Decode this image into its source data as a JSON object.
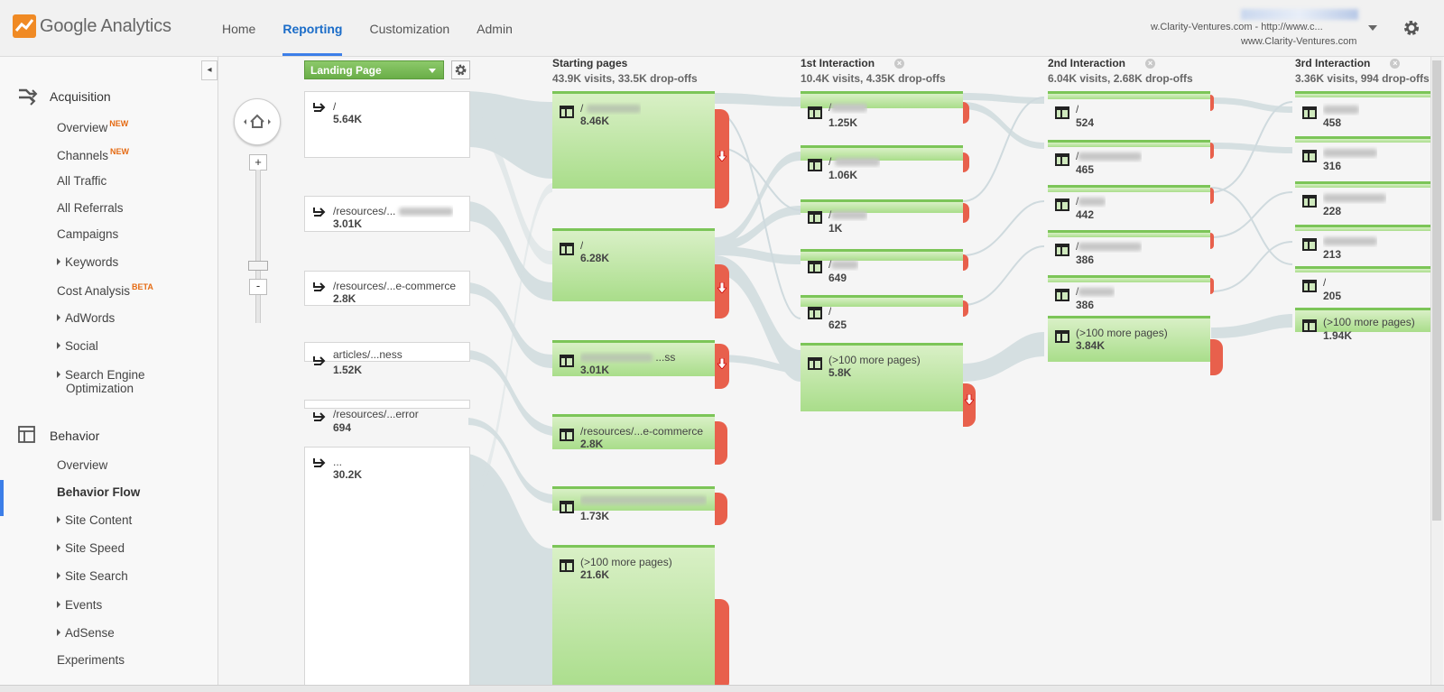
{
  "header": {
    "logo_text": "Google Analytics",
    "nav": [
      "Home",
      "Reporting",
      "Customization",
      "Admin"
    ],
    "active_nav": "Reporting",
    "account_line1": "w.Clarity-Ventures.com - http://www.c...",
    "account_line2": "www.Clarity-Ventures.com"
  },
  "sidebar": {
    "acquisition_label": "Acquisition",
    "acquisition_items": [
      {
        "label": "Overview",
        "badge": "NEW"
      },
      {
        "label": "Channels",
        "badge": "NEW"
      },
      {
        "label": "All Traffic"
      },
      {
        "label": "All Referrals"
      },
      {
        "label": "Campaigns"
      },
      {
        "label": "Keywords",
        "caret": true
      },
      {
        "label": "Cost Analysis",
        "badge": "BETA"
      },
      {
        "label": "AdWords",
        "caret": true
      },
      {
        "label": "Social",
        "caret": true
      },
      {
        "label": "Search Engine",
        "caret": true
      },
      {
        "label": "Optimization"
      }
    ],
    "behavior_label": "Behavior",
    "behavior_items": [
      {
        "label": "Overview"
      },
      {
        "label": "Behavior Flow",
        "bold": true
      },
      {
        "label": "Site Content",
        "caret": true
      },
      {
        "label": "Site Speed",
        "caret": true
      },
      {
        "label": "Site Search",
        "caret": true
      },
      {
        "label": "Events",
        "caret": true
      },
      {
        "label": "AdSense",
        "caret": true
      },
      {
        "label": "Experiments"
      }
    ]
  },
  "flow": {
    "dimension": "Landing Page",
    "columns": [
      {
        "title": "Starting pages",
        "stats": "43.9K visits, 33.5K drop-offs"
      },
      {
        "title": "1st Interaction",
        "stats": "10.4K visits, 4.35K drop-offs"
      },
      {
        "title": "2nd Interaction",
        "stats": "6.04K visits, 2.68K drop-offs"
      },
      {
        "title": "3rd Interaction",
        "stats": "3.36K visits, 994 drop-offs"
      }
    ],
    "landing_nodes": [
      {
        "title": "/",
        "value": "5.64K"
      },
      {
        "title": "/resources/...",
        "value": "3.01K"
      },
      {
        "title": "/resources/...e-commerce",
        "value": "2.8K"
      },
      {
        "title": "articles/...ness",
        "value": "1.52K"
      },
      {
        "title": "/resources/...error",
        "value": "694"
      },
      {
        "title": "...",
        "value": "30.2K"
      }
    ],
    "start_nodes": [
      {
        "title": "/",
        "value": "8.46K"
      },
      {
        "title": "/",
        "value": "6.28K"
      },
      {
        "title": "...ss",
        "value": "3.01K"
      },
      {
        "title": "/resources/...e-commerce",
        "value": "2.8K"
      },
      {
        "title": "...",
        "value": "1.73K"
      },
      {
        "title": "(>100 more pages)",
        "value": "21.6K"
      }
    ],
    "i1_nodes": [
      {
        "title": "/",
        "value": "1.25K"
      },
      {
        "title": "/",
        "value": "1.06K"
      },
      {
        "title": "/",
        "value": "1K"
      },
      {
        "title": "/",
        "value": "649"
      },
      {
        "title": "/",
        "value": "625"
      },
      {
        "title": "(>100 more pages)",
        "value": "5.8K"
      }
    ],
    "i2_nodes": [
      {
        "title": "/",
        "value": "524"
      },
      {
        "title": "/",
        "value": "465"
      },
      {
        "title": "/",
        "value": "442"
      },
      {
        "title": "/",
        "value": "386"
      },
      {
        "title": "/",
        "value": "386"
      },
      {
        "title": "(>100 more pages)",
        "value": "3.84K"
      }
    ],
    "i3_nodes": [
      {
        "title": "/",
        "value": "458"
      },
      {
        "title": "/",
        "value": "316"
      },
      {
        "title": "/",
        "value": "228"
      },
      {
        "title": "/",
        "value": "213"
      },
      {
        "title": "/",
        "value": "205"
      },
      {
        "title": "(>100 more pages)",
        "value": "1.94K"
      }
    ]
  },
  "colors": {
    "accent": "#3c7ee8",
    "node_green": "#a9dd8a",
    "dropoff_red": "#e8604c",
    "flow": "#d5dfe1"
  }
}
